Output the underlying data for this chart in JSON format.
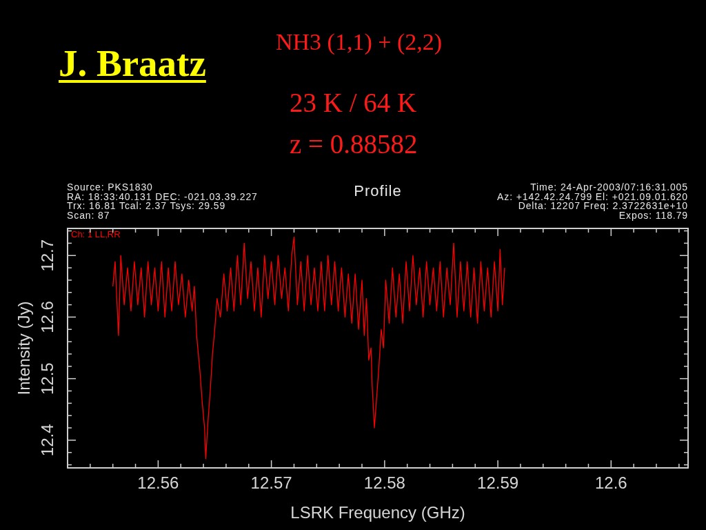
{
  "chart_data": {
    "type": "line",
    "title": "Profile",
    "xlabel": "LSRK Frequency (GHz)",
    "ylabel": "Intensity (Jy)",
    "legend": "top left",
    "annotations": [
      "J. Braatz",
      "NH3 (1,1) + (2,2)",
      "23 K / 64 K",
      "z = 0.88582",
      "Source: PKS1830",
      "RA: 18:33:40.131 DEC: -021.03.39.227",
      "Trx: 16.81 Tcal: 2.37 Tsys: 29.59",
      "Scan: 87",
      "Time: 24-Apr-2003/07:16:31.005",
      "Az: +142.42.24.799 El: +021.09.01.620",
      "Delta: 12207 Freq: 2.3722631e+10",
      "Expos: 118.79"
    ],
    "xlim": [
      12.552,
      12.6068
    ],
    "ylim": [
      12.355,
      12.744
    ],
    "xticks": [
      {
        "value": 12.552,
        "label": null
      },
      {
        "value": 12.554,
        "label": null
      },
      {
        "value": 12.556,
        "label": null
      },
      {
        "value": 12.558,
        "label": null
      },
      12.56,
      {
        "value": 12.562,
        "label": null
      },
      {
        "value": 12.564,
        "label": null
      },
      {
        "value": 12.566,
        "label": null
      },
      {
        "value": 12.568,
        "label": null
      },
      12.57,
      {
        "value": 12.572,
        "label": null
      },
      {
        "value": 12.574,
        "label": null
      },
      {
        "value": 12.576,
        "label": null
      },
      {
        "value": 12.578,
        "label": null
      },
      12.58,
      {
        "value": 12.582,
        "label": null
      },
      {
        "value": 12.584,
        "label": null
      },
      {
        "value": 12.586,
        "label": null
      },
      {
        "value": 12.588,
        "label": null
      },
      12.59,
      {
        "value": 12.592,
        "label": null
      },
      {
        "value": 12.594,
        "label": null
      },
      {
        "value": 12.596,
        "label": null
      },
      {
        "value": 12.598,
        "label": null
      },
      12.6,
      {
        "value": 12.602,
        "label": null
      },
      {
        "value": 12.604,
        "label": null
      },
      {
        "value": 12.606,
        "label": null
      }
    ],
    "yticks": [
      {
        "value": 12.36,
        "label": null
      },
      {
        "value": 12.38,
        "label": null
      },
      12.4,
      {
        "value": 12.42,
        "label": null
      },
      {
        "value": 12.44,
        "label": null
      },
      {
        "value": 12.46,
        "label": null
      },
      {
        "value": 12.48,
        "label": null
      },
      12.5,
      {
        "value": 12.52,
        "label": null
      },
      {
        "value": 12.54,
        "label": null
      },
      {
        "value": 12.56,
        "label": null
      },
      {
        "value": 12.58,
        "label": null
      },
      12.6,
      {
        "value": 12.62,
        "label": null
      },
      {
        "value": 12.64,
        "label": null
      },
      {
        "value": 12.66,
        "label": null
      },
      {
        "value": 12.68,
        "label": null
      },
      12.7,
      {
        "value": 12.72,
        "label": null
      },
      {
        "value": 12.74,
        "label": null
      }
    ],
    "series": [
      {
        "name": "Ch: 1 LL,RR",
        "color": "#ff0000",
        "x": [
          12.556,
          12.5562,
          12.5565,
          12.5567,
          12.557,
          12.5573,
          12.5576,
          12.5579,
          12.5582,
          12.5585,
          12.5588,
          12.5591,
          12.5594,
          12.5597,
          12.56,
          12.5603,
          12.5606,
          12.5609,
          12.5612,
          12.5615,
          12.5618,
          12.5621,
          12.5624,
          12.5627,
          12.563,
          12.5632,
          12.5634,
          12.5637,
          12.5639,
          12.5641,
          12.5642,
          12.5644,
          12.5646,
          12.5648,
          12.565,
          12.5652,
          12.5655,
          12.5658,
          12.5661,
          12.5664,
          12.5667,
          12.567,
          12.5673,
          12.5676,
          12.5679,
          12.5682,
          12.5685,
          12.5688,
          12.5691,
          12.5694,
          12.5697,
          12.57,
          12.5703,
          12.5706,
          12.5709,
          12.5712,
          12.5715,
          12.5718,
          12.572,
          12.5723,
          12.5726,
          12.5729,
          12.5732,
          12.5735,
          12.5738,
          12.5741,
          12.5744,
          12.5747,
          12.575,
          12.5753,
          12.5756,
          12.5759,
          12.5762,
          12.5765,
          12.5768,
          12.5771,
          12.5774,
          12.5777,
          12.578,
          12.5782,
          12.5784,
          12.5786,
          12.5788,
          12.5789,
          12.5791,
          12.5793,
          12.5795,
          12.5797,
          12.5799,
          12.5801,
          12.5804,
          12.5807,
          12.581,
          12.5813,
          12.5816,
          12.5819,
          12.5822,
          12.5825,
          12.5828,
          12.5831,
          12.5834,
          12.5837,
          12.584,
          12.5843,
          12.5846,
          12.5849,
          12.5852,
          12.5855,
          12.5858,
          12.5861,
          12.5864,
          12.5867,
          12.587,
          12.5873,
          12.5876,
          12.5879,
          12.5882,
          12.5885,
          12.5888,
          12.5891,
          12.5894,
          12.5897,
          12.59,
          12.5902,
          12.5904,
          12.5906
        ],
        "values": [
          12.65,
          12.69,
          12.57,
          12.7,
          12.62,
          12.68,
          12.61,
          12.69,
          12.62,
          12.68,
          12.6,
          12.69,
          12.62,
          12.68,
          12.61,
          12.69,
          12.6,
          12.68,
          12.61,
          12.69,
          12.62,
          12.67,
          12.6,
          12.66,
          12.61,
          12.65,
          12.57,
          12.51,
          12.46,
          12.42,
          12.37,
          12.43,
          12.48,
          12.54,
          12.58,
          12.63,
          12.6,
          12.67,
          12.61,
          12.68,
          12.61,
          12.7,
          12.62,
          12.72,
          12.63,
          12.69,
          12.61,
          12.68,
          12.6,
          12.7,
          12.63,
          12.69,
          12.62,
          12.7,
          12.63,
          12.68,
          12.61,
          12.7,
          12.73,
          12.62,
          12.69,
          12.61,
          12.7,
          12.62,
          12.68,
          12.61,
          12.69,
          12.61,
          12.7,
          12.62,
          12.69,
          12.61,
          12.68,
          12.6,
          12.67,
          12.59,
          12.67,
          12.58,
          12.66,
          12.57,
          12.63,
          12.53,
          12.55,
          12.49,
          12.42,
          12.47,
          12.52,
          12.58,
          12.55,
          12.66,
          12.59,
          12.68,
          12.6,
          12.67,
          12.59,
          12.69,
          12.61,
          12.7,
          12.62,
          12.68,
          12.6,
          12.69,
          12.62,
          12.68,
          12.61,
          12.69,
          12.6,
          12.68,
          12.62,
          12.72,
          12.6,
          12.69,
          12.61,
          12.69,
          12.6,
          12.68,
          12.59,
          12.69,
          12.61,
          12.68,
          12.6,
          12.69,
          12.61,
          12.71,
          12.62,
          12.68
        ]
      }
    ]
  }
}
